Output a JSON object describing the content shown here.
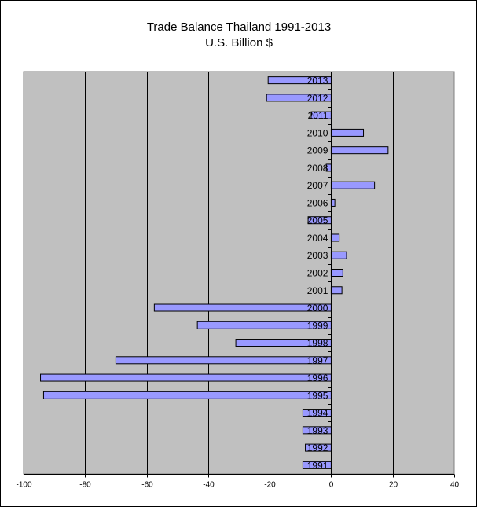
{
  "chart_data": {
    "type": "bar",
    "orientation": "horizontal",
    "title": "Trade Balance Thailand 1991-2013",
    "subtitle": "U.S. Billion $",
    "xlabel": "",
    "ylabel": "",
    "xlim": [
      -100,
      40
    ],
    "xticks": [
      -100,
      -80,
      -60,
      -40,
      -20,
      0,
      20,
      40
    ],
    "categories": [
      "1991",
      "1992",
      "1993",
      "1994",
      "1995",
      "1996",
      "1997",
      "1998",
      "1999",
      "2000",
      "2001",
      "2002",
      "2003",
      "2004",
      "2005",
      "2006",
      "2007",
      "2008",
      "2009",
      "2010",
      "2011",
      "2012",
      "2013"
    ],
    "values": [
      -9.2,
      -8.4,
      -9.2,
      -9.2,
      -93.5,
      -94.5,
      -70,
      -31,
      -43.5,
      -57.5,
      3.5,
      3.8,
      5,
      2.6,
      -7.5,
      1.2,
      14.1,
      -1.6,
      18.5,
      10.5,
      -6.5,
      -21,
      -20.5
    ],
    "grid": "vertical",
    "legend": "none",
    "colors": {
      "plot_background": "#c0c0c0",
      "bar_fill": "#9999ff",
      "bar_stroke": "#000000",
      "gridline": "#000000"
    }
  }
}
